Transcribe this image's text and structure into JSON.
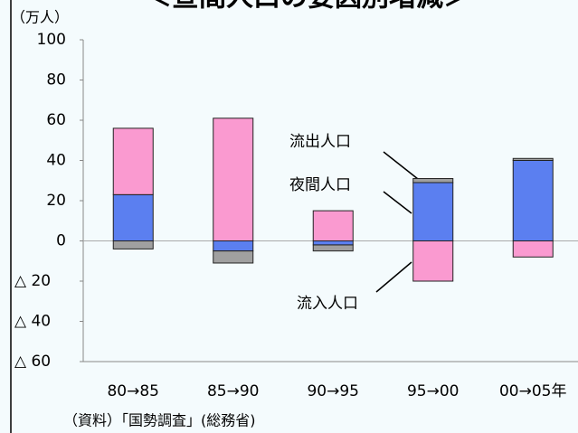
{
  "chart_data": {
    "type": "bar",
    "title": "＜昼間人口の要因別増減＞",
    "y_label": "（万人）",
    "categories": [
      "80→85",
      "85→90",
      "90→95",
      "95→00",
      "00→05年"
    ],
    "series": [
      {
        "name": "夜間人口",
        "color": "#5b7ff0",
        "values": [
          23,
          -5,
          -2,
          29,
          40
        ]
      },
      {
        "name": "流入人口",
        "color": "#fa9ad0",
        "values": [
          33,
          61,
          15,
          -20,
          -8
        ]
      },
      {
        "name": "流出人口",
        "color": "#a0a0a0",
        "values": [
          -4,
          -6,
          -3,
          2,
          1
        ]
      }
    ],
    "ylim": [
      -60,
      100
    ],
    "yticks": [
      {
        "value": -60,
        "label": "△ 60"
      },
      {
        "value": -40,
        "label": "△ 40"
      },
      {
        "value": -20,
        "label": "△ 20"
      },
      0,
      20,
      40,
      60,
      80,
      100
    ],
    "grid": false,
    "source": "（資料）「国勢調査」(総務省)"
  }
}
